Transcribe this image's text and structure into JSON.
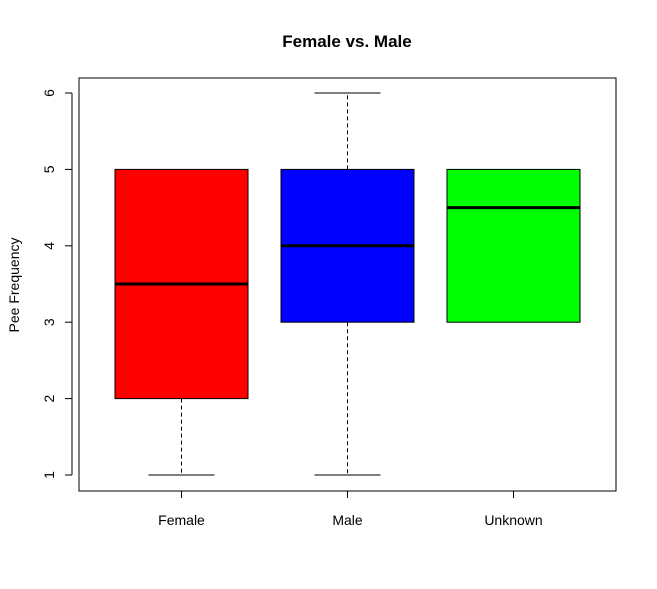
{
  "chart_data": {
    "type": "box",
    "title": "Female vs. Male",
    "xlabel": "",
    "ylabel": "Pee Frequency",
    "ylim": [
      0.8,
      6.2
    ],
    "yticks": [
      1,
      2,
      3,
      4,
      5,
      6
    ],
    "grid": false,
    "categories": [
      "Female",
      "Male",
      "Unknown"
    ],
    "boxes": [
      {
        "category": "Female",
        "color": "#ff0000",
        "whisker_low": 1,
        "q1": 2,
        "median": 3.5,
        "q3": 5,
        "whisker_high": 5
      },
      {
        "category": "Male",
        "color": "#0000ff",
        "whisker_low": 1,
        "q1": 3,
        "median": 4,
        "q3": 5,
        "whisker_high": 6
      },
      {
        "category": "Unknown",
        "color": "#00ff00",
        "whisker_low": 3,
        "q1": 3,
        "median": 4.5,
        "q3": 5,
        "whisker_high": 5
      }
    ]
  }
}
